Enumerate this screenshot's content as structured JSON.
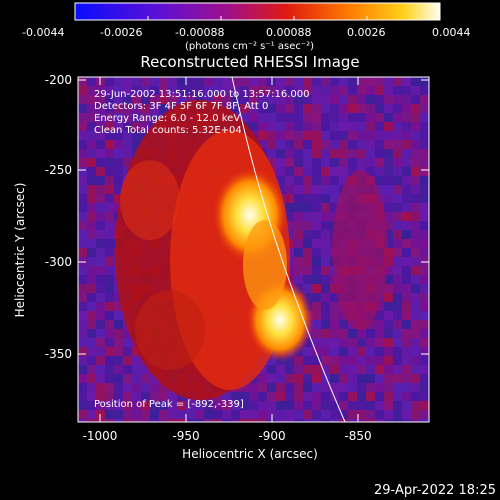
{
  "colorbar": {
    "ticks": [
      "-0.0044",
      "-0.0026",
      "-0.00088",
      "0.00088",
      "0.0026",
      "0.0044"
    ],
    "units_label": "(photons cm⁻² s⁻¹ asec⁻²)"
  },
  "plot": {
    "title": "Reconstructed RHESSI Image",
    "info_lines": [
      "29-Jun-2002 13:51:16.000 to 13:57:16.000",
      "Detectors: 3F 4F 5F 6F 7F 8F, Att 0",
      "Energy Range: 6.0 - 12.0 keV",
      "Clean    Total counts: 5.32E+04"
    ],
    "peak_text": "Position of Peak = [-892,-339]",
    "x_axis_label": "Heliocentric X (arcsec)",
    "y_axis_label": "Heliocentric Y (arcsec)",
    "x_ticks": [
      "-1000",
      "-950",
      "-900",
      "-850"
    ],
    "y_ticks": [
      "-200",
      "-250",
      "-300",
      "-350"
    ]
  },
  "footer": {
    "timestamp": "29-Apr-2022 18:25"
  }
}
